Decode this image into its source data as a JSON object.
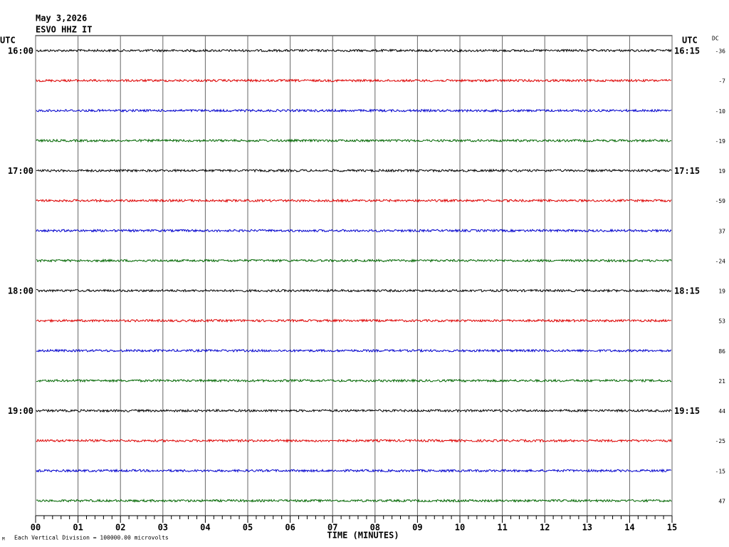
{
  "header": {
    "date": "May 3,2026",
    "station": "ESVO HHZ IT",
    "utc_left": "UTC",
    "utc_right": "UTC",
    "dc_label": "DC"
  },
  "chart_data": {
    "type": "helicorder",
    "x_label": "TIME (MINUTES)",
    "xlim": [
      0,
      15
    ],
    "xticks": [
      {
        "value": 0,
        "label": "00"
      },
      {
        "value": 1,
        "label": "01"
      },
      {
        "value": 2,
        "label": "02"
      },
      {
        "value": 3,
        "label": "03"
      },
      {
        "value": 4,
        "label": "04"
      },
      {
        "value": 5,
        "label": "05"
      },
      {
        "value": 6,
        "label": "06"
      },
      {
        "value": 7,
        "label": "07"
      },
      {
        "value": 8,
        "label": "08"
      },
      {
        "value": 9,
        "label": "09"
      },
      10,
      11,
      12,
      13,
      14,
      15
    ],
    "hour_rows": [
      {
        "left": "16:00",
        "right": "16:15"
      },
      {
        "left": "17:00",
        "right": "17:15"
      },
      {
        "left": "18:00",
        "right": "18:15"
      },
      {
        "left": "19:00",
        "right": "19:15"
      }
    ],
    "traces": [
      {
        "dc": -36,
        "color": "#000000"
      },
      {
        "dc": -7,
        "color": "#dd0000"
      },
      {
        "dc": -10,
        "color": "#0000cc"
      },
      {
        "dc": -19,
        "color": "#006600"
      },
      {
        "dc": 19,
        "color": "#000000"
      },
      {
        "dc": -59,
        "color": "#dd0000"
      },
      {
        "dc": 37,
        "color": "#0000cc"
      },
      {
        "dc": -24,
        "color": "#006600"
      },
      {
        "dc": 19,
        "color": "#000000"
      },
      {
        "dc": 53,
        "color": "#dd0000"
      },
      {
        "dc": 86,
        "color": "#0000cc"
      },
      {
        "dc": 21,
        "color": "#006600"
      },
      {
        "dc": 44,
        "color": "#000000"
      },
      {
        "dc": -25,
        "color": "#dd0000"
      },
      {
        "dc": -15,
        "color": "#0000cc"
      },
      {
        "dc": 47,
        "color": "#006600"
      }
    ],
    "footer": "Each Vertical Division = 100000.00 microvolts",
    "corner_mark": "M"
  }
}
